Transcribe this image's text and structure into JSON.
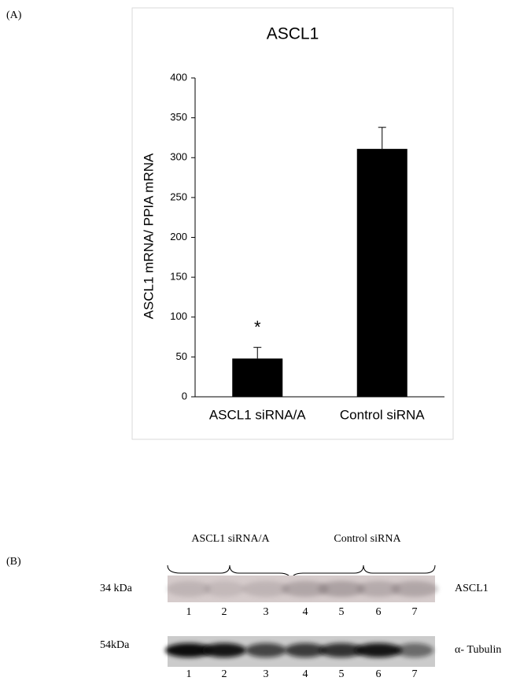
{
  "panels": {
    "a": "(A)",
    "b": "(B)"
  },
  "chart_data": {
    "type": "bar",
    "title": "ASCL1",
    "y_label": "ASCL1 mRNA/ PPIA mRNA",
    "categories": [
      "ASCL1 siRNA/A",
      "Control siRNA"
    ],
    "values": [
      48,
      311
    ],
    "errors": [
      14,
      27
    ],
    "annotations": [
      "*",
      null
    ],
    "color": "#000000",
    "ylim": [
      0,
      400
    ],
    "yticks": [
      0,
      50,
      100,
      150,
      200,
      250,
      300,
      350,
      400
    ],
    "grid": false
  },
  "blot": {
    "groups": [
      "ASCL1 siRNA/A",
      "Control siRNA"
    ],
    "rows": [
      {
        "size": "34 kDa",
        "protein": "ASCL1",
        "lanes": [
          "1",
          "2",
          "3",
          "4",
          "5",
          "6",
          "7"
        ]
      },
      {
        "size": "54kDa",
        "protein": "α- Tubulin",
        "lanes": [
          "1",
          "2",
          "3",
          "4",
          "5",
          "6",
          "7"
        ]
      }
    ]
  }
}
